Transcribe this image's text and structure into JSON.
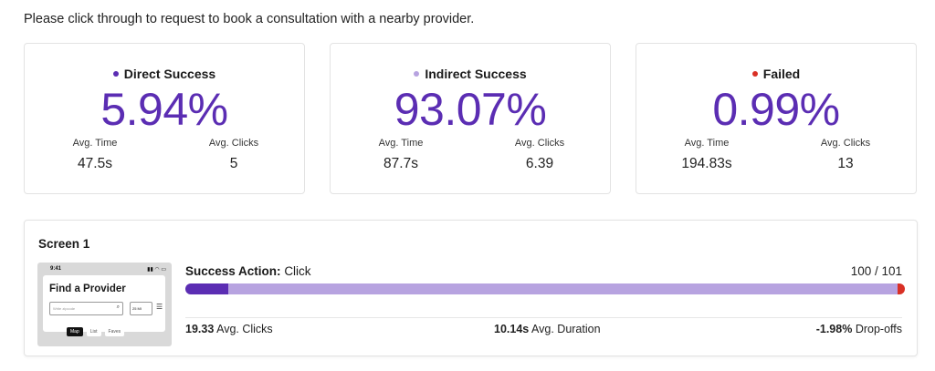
{
  "instruction": "Please click through to request to book a consultation with a nearby provider.",
  "colors": {
    "accent": "#5b2db3",
    "direct": "#5b2db3",
    "indirect": "#b7a3e0",
    "failed": "#d93025"
  },
  "cards": [
    {
      "title": "Direct Success",
      "dot_color": "#5b2db3",
      "percent": "5.94%",
      "avg_time_label": "Avg. Time",
      "avg_time": "47.5s",
      "avg_clicks_label": "Avg. Clicks",
      "avg_clicks": "5"
    },
    {
      "title": "Indirect Success",
      "dot_color": "#b7a3e0",
      "percent": "93.07%",
      "avg_time_label": "Avg. Time",
      "avg_time": "87.7s",
      "avg_clicks_label": "Avg. Clicks",
      "avg_clicks": "6.39"
    },
    {
      "title": "Failed",
      "dot_color": "#d93025",
      "percent": "0.99%",
      "avg_time_label": "Avg. Time",
      "avg_time": "194.83s",
      "avg_clicks_label": "Avg. Clicks",
      "avg_clicks": "13"
    }
  ],
  "screen": {
    "title": "Screen 1",
    "thumbnail": {
      "status_time": "9:41",
      "status_icons": "▮▮ ◠ ▭",
      "heading": "Find a Provider",
      "zip_placeholder": "Write zipcode",
      "miles": "25 MI",
      "tabs": [
        "Map",
        "List",
        "Faves"
      ]
    },
    "success_action_label": "Success Action:",
    "success_action_value": "Click",
    "count": "100 / 101",
    "progress": {
      "direct": 0.0594,
      "indirect": 0.9307,
      "failed": 0.0099
    },
    "avg_clicks_value": "19.33",
    "avg_clicks_label": "Avg. Clicks",
    "avg_duration_value": "10.14s",
    "avg_duration_label": "Avg. Duration",
    "dropoffs_value": "-1.98%",
    "dropoffs_label": "Drop-offs"
  }
}
